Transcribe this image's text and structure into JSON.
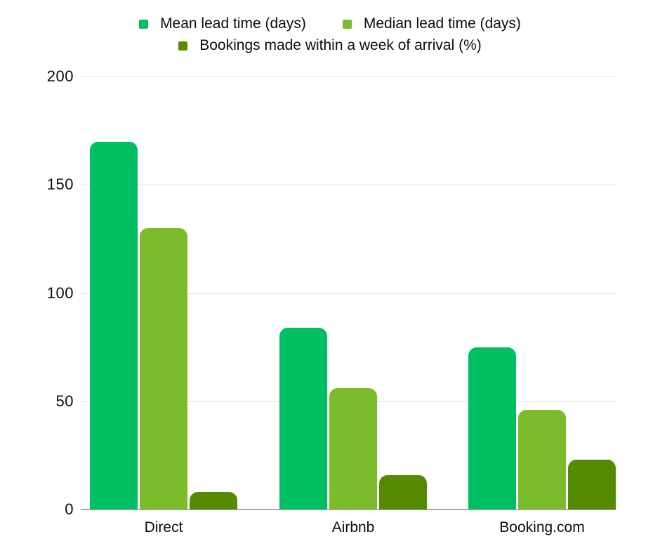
{
  "chart_data": {
    "type": "bar",
    "title": "",
    "xlabel": "",
    "ylabel": "",
    "categories": [
      "Direct",
      "Airbnb",
      "Booking.com"
    ],
    "series": [
      {
        "name": "Mean lead time (days)",
        "color": "#00BF63",
        "values": [
          170,
          84,
          75
        ]
      },
      {
        "name": "Median lead time (days)",
        "color": "#7CBB2C",
        "values": [
          130,
          56,
          46
        ]
      },
      {
        "name": "Bookings made within a week of arrival (%)",
        "color": "#558B00",
        "values": [
          8,
          16,
          23
        ]
      }
    ],
    "ylim": [
      0,
      200
    ],
    "yticks": [
      0,
      50,
      100,
      150,
      200
    ],
    "grid": true,
    "legend_position": "top"
  },
  "colors": {
    "background": "#FFFFFF",
    "grid": "#E2E2E2",
    "axis": "#ABABAB",
    "text": "#0D0D0D"
  }
}
